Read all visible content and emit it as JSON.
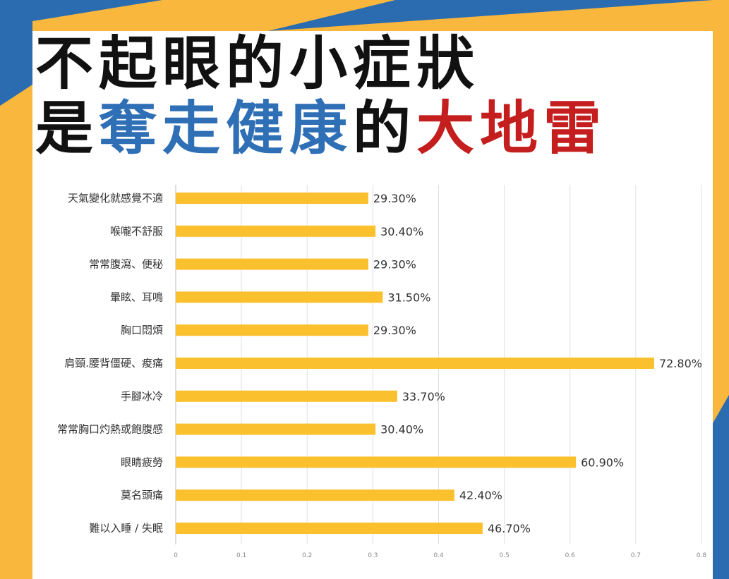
{
  "colors": {
    "background_blue": "#2b6cb0",
    "background_yellow": "#f9b73d",
    "panel": "#ffffff",
    "dark_text": "#111111",
    "highlight_blue": "#2e6fb5",
    "highlight_red": "#c41e1e",
    "bar": "#fbc02d"
  },
  "headline": {
    "line1": "不起眼的小症狀",
    "line2": [
      {
        "text": "是",
        "color": "#111111"
      },
      {
        "text": "奪走健康",
        "color": "#2e6fb5"
      },
      {
        "text": "的",
        "color": "#111111"
      },
      {
        "text": "大地雷",
        "color": "#c41e1e"
      }
    ]
  },
  "chart_data": {
    "type": "bar",
    "orientation": "horizontal",
    "categories": [
      "天氣變化就感覺不適",
      "喉嚨不舒服",
      "常常腹瀉、便秘",
      "暈眩、耳鳴",
      "胸口悶煩",
      "肩頸.腰背僵硬、痠痛",
      "手腳冰冷",
      "常常胸口灼熱或飽腹感",
      "眼睛疲勞",
      "莫名頭痛",
      "難以入睡 / 失眠"
    ],
    "values": [
      0.293,
      0.304,
      0.293,
      0.315,
      0.293,
      0.728,
      0.337,
      0.304,
      0.609,
      0.424,
      0.467
    ],
    "value_labels": [
      "29.30%",
      "30.40%",
      "29.30%",
      "31.50%",
      "29.30%",
      "72.80%",
      "33.70%",
      "30.40%",
      "60.90%",
      "42.40%",
      "46.70%"
    ],
    "xlim": [
      0,
      0.8
    ],
    "xticks": [
      "0",
      "0.1",
      "0.2",
      "0.3",
      "0.4",
      "0.5",
      "0.6",
      "0.7",
      "0.8"
    ],
    "grid": "vertical",
    "legend": "none"
  }
}
